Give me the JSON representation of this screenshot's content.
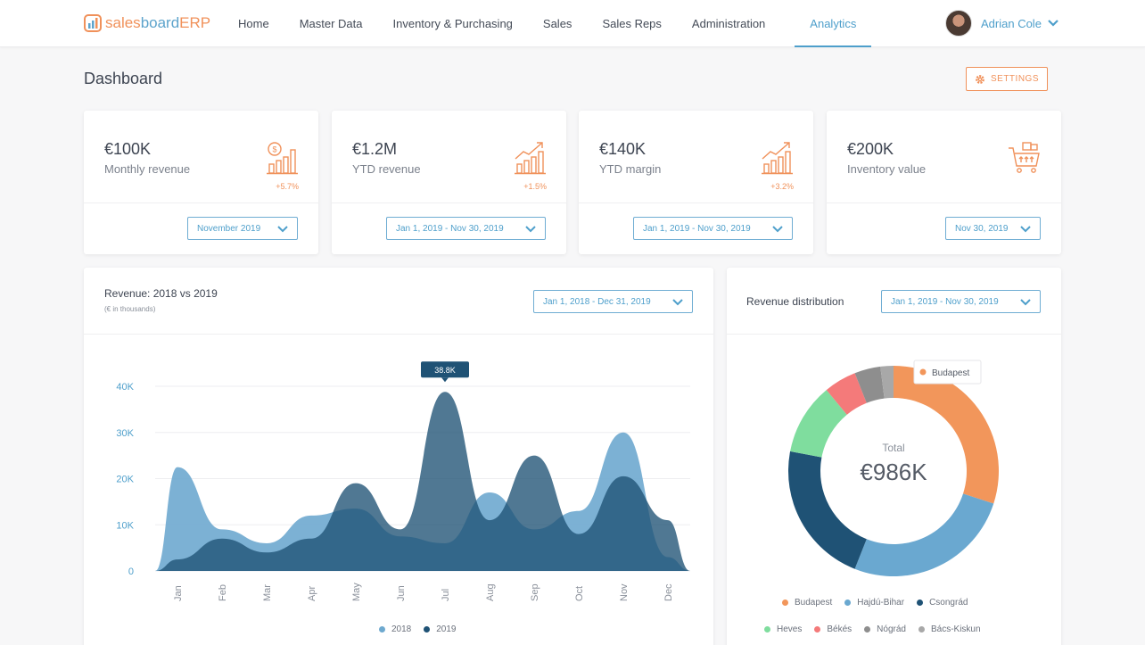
{
  "app": {
    "logo_part1": "sales",
    "logo_part2": "board",
    "logo_part3": " ERP"
  },
  "nav": [
    {
      "label": "Home",
      "active": false
    },
    {
      "label": "Master Data",
      "active": false
    },
    {
      "label": "Inventory & Purchasing",
      "active": false
    },
    {
      "label": "Sales",
      "active": false
    },
    {
      "label": "Sales Reps",
      "active": false
    },
    {
      "label": "Administration",
      "active": false
    },
    {
      "label": "Analytics",
      "active": true
    }
  ],
  "user": {
    "name": "Adrian Cole"
  },
  "page": {
    "title": "Dashboard",
    "settings_label": "SETTINGS"
  },
  "kpis": [
    {
      "value": "€100K",
      "label": "Monthly revenue",
      "change": "+5.7%",
      "icon": "dollar-bar-chart-icon",
      "period": "November 2019"
    },
    {
      "value": "€1.2M",
      "label": "YTD revenue",
      "change": "+1.5%",
      "icon": "trend-up-chart-icon",
      "period": "Jan 1, 2019 - Nov 30, 2019"
    },
    {
      "value": "€140K",
      "label": "YTD margin",
      "change": "+3.2%",
      "icon": "trend-up-chart-icon",
      "period": "Jan 1, 2019 - Nov 30, 2019"
    },
    {
      "value": "€200K",
      "label": "Inventory value",
      "change": "",
      "icon": "shopping-cart-icon",
      "period": "Nov 30, 2019"
    }
  ],
  "revenue_panel": {
    "title": "Revenue: 2018 vs 2019",
    "subtitle": "(€ in thousands)",
    "period": "Jan 1, 2018 - Dec 31, 2019",
    "tooltip": "38.8K"
  },
  "distribution_panel": {
    "title": "Revenue distribution",
    "period": "Jan 1, 2019 - Nov 30, 2019",
    "total_label": "Total",
    "total_value": "€986K",
    "tooltip_label": "Budapest"
  },
  "colors": {
    "accent": "#4e9fcb",
    "orange": "#f0915a",
    "series_2018": "#6ea9cf",
    "series_2019": "#1f5275"
  },
  "chart_data": [
    {
      "type": "area",
      "title": "Revenue: 2018 vs 2019",
      "subtitle": "(€ in thousands)",
      "categories": [
        "Jan",
        "Feb",
        "Mar",
        "Apr",
        "May",
        "Jun",
        "Jul",
        "Aug",
        "Sep",
        "Oct",
        "Nov",
        "Dec"
      ],
      "yticks": [
        "0",
        "10K",
        "20K",
        "30K",
        "40K"
      ],
      "ylim": [
        0,
        40
      ],
      "grid": true,
      "legend": "bottom",
      "series": [
        {
          "name": "2018",
          "color": "#6ea9cf",
          "values": [
            22.5,
            9,
            6,
            12,
            13.5,
            7.5,
            6,
            17,
            9,
            13,
            30,
            3
          ]
        },
        {
          "name": "2019",
          "color": "#1f5275",
          "values": [
            2.5,
            7,
            4,
            7,
            19,
            9,
            38.8,
            11,
            25,
            8,
            20.5,
            11
          ]
        }
      ]
    },
    {
      "type": "pie",
      "title": "Revenue distribution",
      "legend": "bottom",
      "total": "€986K",
      "labels": [
        "Budapest",
        "Hajdú-Bihar",
        "Csongrád",
        "Heves",
        "Békés",
        "Nógrád",
        "Bács-Kiskun"
      ],
      "values": [
        30,
        26,
        22,
        11,
        5,
        4,
        2
      ],
      "colors": [
        "#f2965b",
        "#6aa8d0",
        "#1f5275",
        "#7fdd9e",
        "#f47a7a",
        "#8e8e8e",
        "#a8a8a8"
      ]
    }
  ]
}
